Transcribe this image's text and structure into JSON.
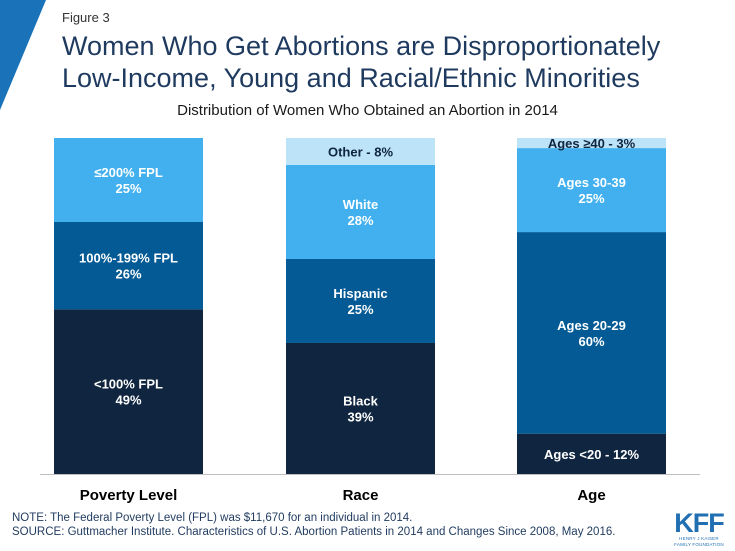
{
  "figure_label": "Figure 3",
  "title": "Women Who Get Abortions are Disproportionately Low-Income, Young and Racial/Ethnic Minorities",
  "subtitle": "Distribution of Women Who Obtained an Abortion in 2014",
  "colors": {
    "darkest": "#0f2540",
    "dark": "#045a95",
    "medium": "#42b0ee",
    "light": "#bde3f8",
    "accent": "#1a73b8"
  },
  "chart_data": {
    "type": "bar",
    "stacked": true,
    "ylim": [
      0,
      100
    ],
    "grid": false,
    "categories": [
      "Poverty Level",
      "Race",
      "Age"
    ],
    "stacks": [
      {
        "category": "Poverty Level",
        "segments": [
          {
            "label": "<100% FPL",
            "value": 49,
            "display": "49%",
            "color": "#0f2540"
          },
          {
            "label": "100%-199% FPL",
            "value": 26,
            "display": "26%",
            "color": "#045a95"
          },
          {
            "label": "≤200% FPL",
            "value": 25,
            "display": "25%",
            "color": "#42b0ee"
          }
        ]
      },
      {
        "category": "Race",
        "segments": [
          {
            "label": "Black",
            "value": 39,
            "display": "39%",
            "color": "#0f2540"
          },
          {
            "label": "Hispanic",
            "value": 25,
            "display": "25%",
            "color": "#045a95"
          },
          {
            "label": "White",
            "value": 28,
            "display": "28%",
            "color": "#42b0ee"
          },
          {
            "label": "Other - 8%",
            "value": 8,
            "display": "",
            "color": "#bde3f8"
          }
        ]
      },
      {
        "category": "Age",
        "segments": [
          {
            "label": "Ages <20 - 12%",
            "value": 12,
            "display": "",
            "color": "#0f2540"
          },
          {
            "label": "Ages 20-29",
            "value": 60,
            "display": "60%",
            "color": "#045a95"
          },
          {
            "label": "Ages 30-39",
            "value": 25,
            "display": "25%",
            "color": "#42b0ee"
          },
          {
            "label": "Ages ≥40 - 3%",
            "value": 3,
            "display": "",
            "color": "#bde3f8"
          }
        ]
      }
    ]
  },
  "notes": {
    "note": "NOTE: The Federal Poverty Level (FPL) was $11,670 for an individual in 2014.",
    "source": "SOURCE: Guttmacher Institute.  Characteristics of U.S. Abortion Patients in 2014 and Changes Since 2008, May 2016."
  },
  "logo": {
    "main": "KFF",
    "line1": "HENRY J KAISER",
    "line2": "FAMILY FOUNDATION"
  }
}
